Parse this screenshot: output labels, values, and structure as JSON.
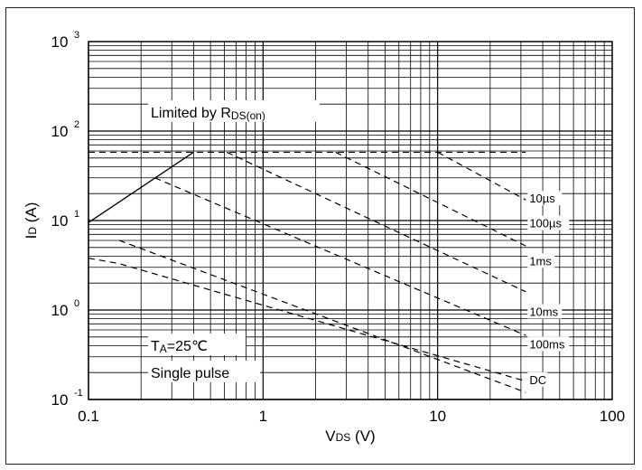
{
  "chart_data": {
    "type": "line",
    "x_scale": "log",
    "y_scale": "log",
    "xlim": [
      0.1,
      100
    ],
    "ylim": [
      0.1,
      1000
    ],
    "grid": true,
    "x_ticks": [
      "0.1",
      "1",
      "10",
      "100"
    ],
    "y_ticks": [
      {
        "base": "10",
        "exp": "-1"
      },
      {
        "base": "10",
        "exp": "0"
      },
      {
        "base": "10",
        "exp": "1"
      },
      {
        "base": "10",
        "exp": "2"
      },
      {
        "base": "10",
        "exp": "3"
      }
    ],
    "xlabel": {
      "main": "V",
      "sub": "DS",
      "unit": " (V)"
    },
    "ylabel": {
      "main": "I",
      "sub": "D",
      "unit": " (A)"
    },
    "annotations": {
      "limit": {
        "pre": "Limited by R",
        "sub": "DS(on)"
      },
      "ta": {
        "pre": "T",
        "sub": "A",
        "post": "=25℃"
      },
      "pulse": "Single pulse"
    },
    "limit_line": {
      "x": [
        0.1,
        0.4
      ],
      "y": [
        9.5,
        58
      ]
    },
    "current_limit": {
      "y": 58
    },
    "series": [
      {
        "label": "10µs",
        "x": [
          10,
          32
        ],
        "y": [
          58,
          17
        ],
        "label_at": [
          32,
          17
        ]
      },
      {
        "label": "100µs",
        "x": [
          2.6,
          32
        ],
        "y": [
          58,
          5.2
        ],
        "label_at": [
          32,
          9
        ]
      },
      {
        "label": "1ms",
        "x": [
          0.62,
          32
        ],
        "y": [
          58,
          1.6
        ],
        "label_at": [
          32,
          3.4
        ]
      },
      {
        "label": "10ms",
        "x": [
          0.24,
          32
        ],
        "y": [
          30,
          0.52
        ],
        "label_at": [
          32,
          0.92
        ]
      },
      {
        "label": "100ms",
        "x": [
          0.15,
          32
        ],
        "y": [
          6,
          0.12
        ],
        "label_at": [
          32,
          0.4
        ]
      },
      {
        "label": "DC",
        "x": [
          0.1,
          0.15
        ],
        "y": [
          3.8,
          3.3
        ],
        "label_at": [
          32,
          0.16
        ]
      }
    ]
  }
}
